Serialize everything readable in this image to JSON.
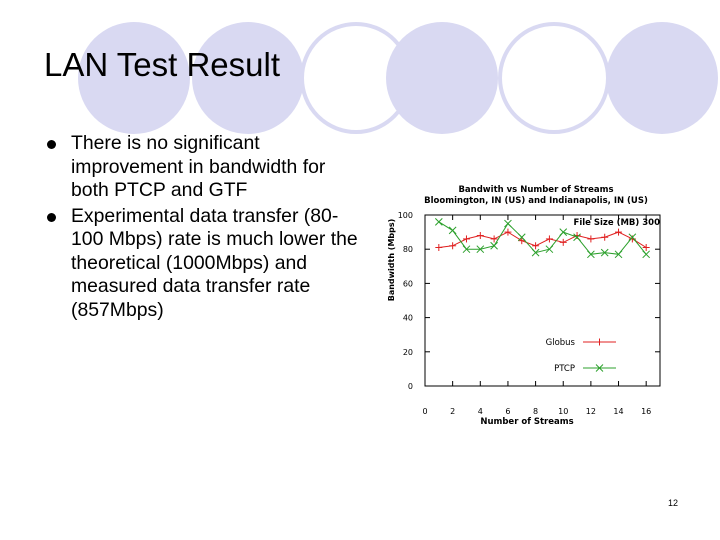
{
  "slide": {
    "title": "LAN Test Result",
    "bullets": [
      "There is no significant improvement in bandwidth for both PTCP and GTF",
      "Experimental data transfer (80-100 Mbps) rate is much lower the theoretical (1000Mbps) and measured data transfer rate (857Mbps)"
    ],
    "page_number": "12",
    "decor_color": "#d9d9f2"
  },
  "chart_data": {
    "type": "line",
    "title": "Bandwith vs Number of Streams",
    "subtitle": "Bloomington, IN (US) and Indianapolis, IN (US)",
    "annotation": "File Size (MB) 300",
    "xlabel": "Number of Streams",
    "ylabel": "Bandwidth (Mbps)",
    "xlim": [
      0,
      17
    ],
    "ylim": [
      0,
      100
    ],
    "x_ticks": [
      0,
      2,
      4,
      6,
      8,
      10,
      12,
      14,
      16
    ],
    "y_ticks": [
      0,
      20,
      40,
      60,
      80,
      100
    ],
    "grid": false,
    "legend_position": "bottom-right",
    "series": [
      {
        "name": "Globus",
        "color": "#e02020",
        "marker": "plus",
        "x": [
          1,
          2,
          3,
          4,
          5,
          6,
          7,
          8,
          9,
          10,
          11,
          12,
          13,
          14,
          15,
          16
        ],
        "y": [
          81,
          82,
          86,
          88,
          86,
          90,
          85,
          82,
          86,
          84,
          88,
          86,
          87,
          90,
          86,
          81
        ]
      },
      {
        "name": "PTCP",
        "color": "#2ca02c",
        "marker": "x",
        "x": [
          1,
          2,
          3,
          4,
          5,
          6,
          7,
          8,
          9,
          10,
          11,
          12,
          13,
          14,
          15,
          16
        ],
        "y": [
          96,
          91,
          80,
          80,
          82,
          95,
          87,
          78,
          80,
          90,
          87,
          77,
          78,
          77,
          87,
          77
        ]
      }
    ]
  }
}
